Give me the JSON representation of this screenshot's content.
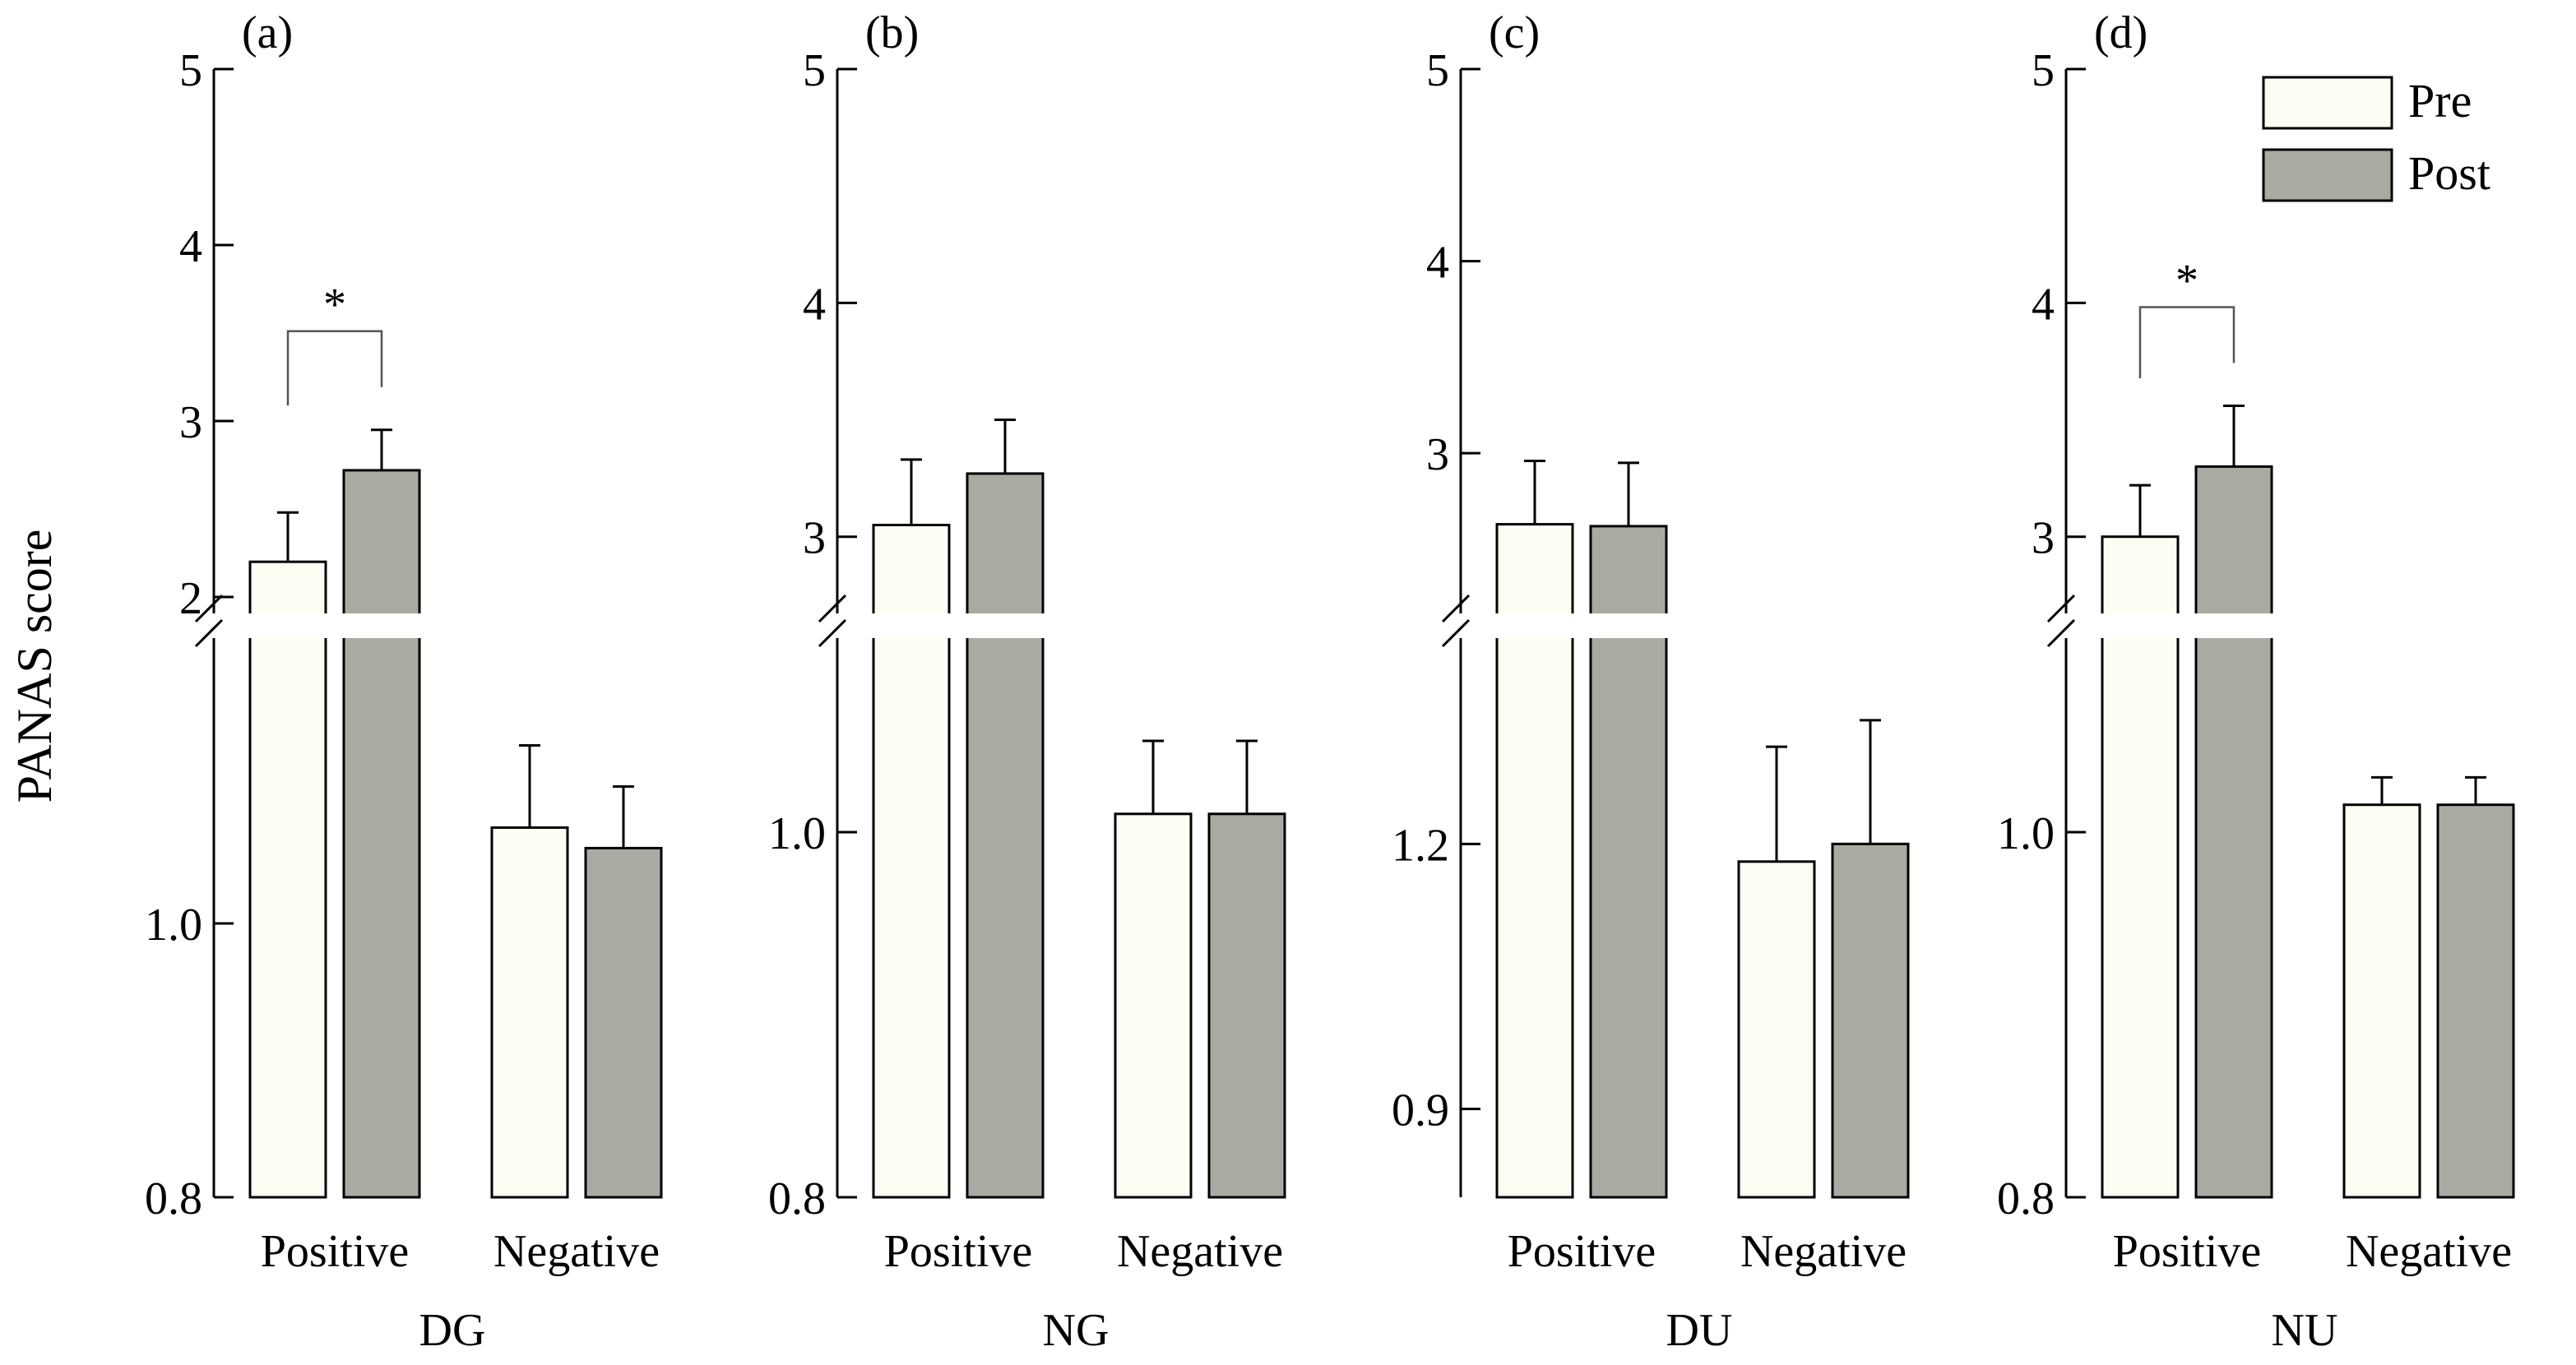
{
  "chart_data": {
    "type": "bar",
    "ylabel": "PANAS score",
    "legend": {
      "position": "top-right",
      "entries": [
        {
          "name": "Pre",
          "color": "#fdfdf3"
        },
        {
          "name": "Post",
          "color": "#aaaaa2"
        }
      ]
    },
    "categories": [
      "Positive",
      "Negative"
    ],
    "y_axis_break": true,
    "panels": [
      {
        "label": "(a)",
        "group": "DG",
        "upper_ylim": [
          2,
          5
        ],
        "upper_ticks": [
          "2",
          "3",
          "4",
          "5"
        ],
        "lower_ylim": [
          0.8,
          1.2
        ],
        "lower_ticks": [
          "0.8",
          "1.0"
        ],
        "series": [
          {
            "name": "Pre",
            "values": [
              2.2,
              1.07
            ],
            "errors": [
              0.28,
              0.06
            ]
          },
          {
            "name": "Post",
            "values": [
              2.72,
              1.055
            ],
            "errors": [
              0.23,
              0.045
            ]
          }
        ],
        "significance": {
          "category": "Positive",
          "symbol": "*"
        }
      },
      {
        "label": "(b)",
        "group": "NG",
        "upper_ylim": [
          2.7,
          5
        ],
        "upper_ticks": [
          "3",
          "4",
          "5"
        ],
        "lower_ylim": [
          0.8,
          1.1
        ],
        "lower_ticks": [
          "0.8",
          "1.0"
        ],
        "series": [
          {
            "name": "Pre",
            "values": [
              3.05,
              1.01
            ],
            "errors": [
              0.28,
              0.04
            ]
          },
          {
            "name": "Post",
            "values": [
              3.27,
              1.01
            ],
            "errors": [
              0.23,
              0.04
            ]
          }
        ],
        "significance": null
      },
      {
        "label": "(c)",
        "group": "DU",
        "upper_ylim": [
          2.2,
          5
        ],
        "upper_ticks": [
          "3",
          "4",
          "5"
        ],
        "lower_ylim": [
          0.8,
          1.42
        ],
        "lower_ticks": [
          "0.9",
          "1.2"
        ],
        "series": [
          {
            "name": "Pre",
            "values": [
              2.63,
              1.18
            ],
            "errors": [
              0.33,
              0.13
            ]
          },
          {
            "name": "Post",
            "values": [
              2.62,
              1.2
            ],
            "errors": [
              0.33,
              0.14
            ]
          }
        ],
        "significance": null
      },
      {
        "label": "(d)",
        "group": "NU",
        "upper_ylim": [
          2.7,
          5
        ],
        "upper_ticks": [
          "3",
          "4",
          "5"
        ],
        "lower_ylim": [
          0.8,
          1.1
        ],
        "lower_ticks": [
          "0.8",
          "1.0"
        ],
        "series": [
          {
            "name": "Pre",
            "values": [
              3.0,
              1.015
            ],
            "errors": [
              0.22,
              0.015
            ]
          },
          {
            "name": "Post",
            "values": [
              3.3,
              1.015
            ],
            "errors": [
              0.26,
              0.015
            ]
          }
        ],
        "significance": {
          "category": "Positive",
          "symbol": "*"
        }
      }
    ]
  }
}
